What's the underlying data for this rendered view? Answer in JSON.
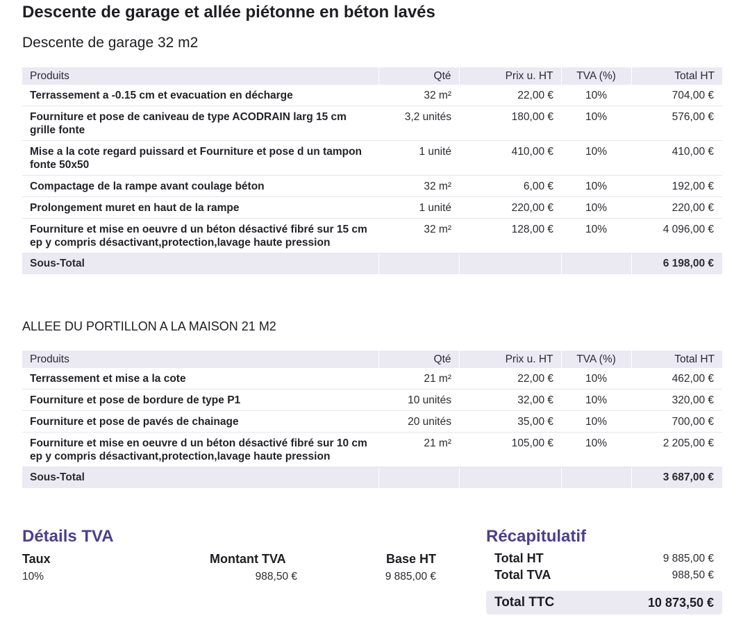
{
  "document": {
    "title": "Descente de garage et allée piétonne en béton lavés"
  },
  "table_headers": {
    "produits": "Produits",
    "qte": "Qté",
    "prix": "Prix u. HT",
    "tva": "TVA (%)",
    "total": "Total HT"
  },
  "sections": [
    {
      "title": "Descente de garage 32 m2",
      "rows": [
        {
          "desc": "Terrassement a -0.15 cm et evacuation en décharge",
          "qty": "32 m²",
          "price": "22,00 €",
          "tva": "10%",
          "total": "704,00 €"
        },
        {
          "desc": "Fourniture et pose de caniveau de type ACODRAIN larg 15 cm grille fonte",
          "qty": "3,2 unités",
          "price": "180,00 €",
          "tva": "10%",
          "total": "576,00 €"
        },
        {
          "desc": "Mise a la cote regard puissard et Fourniture et pose d un tampon fonte 50x50",
          "qty": "1 unité",
          "price": "410,00 €",
          "tva": "10%",
          "total": "410,00 €"
        },
        {
          "desc": "Compactage de la rampe avant coulage béton",
          "qty": "32 m²",
          "price": "6,00 €",
          "tva": "10%",
          "total": "192,00 €"
        },
        {
          "desc": "Prolongement muret en haut de la rampe",
          "qty": "1 unité",
          "price": "220,00 €",
          "tva": "10%",
          "total": "220,00 €"
        },
        {
          "desc": "Fourniture et mise en oeuvre d un béton désactivé fibré sur 15 cm ep y compris désactivant,protection,lavage haute pression",
          "qty": "32 m²",
          "price": "128,00 €",
          "tva": "10%",
          "total": "4 096,00 €"
        }
      ],
      "subtotal_label": "Sous-Total",
      "subtotal": "6 198,00 €"
    },
    {
      "title": "ALLEE DU PORTILLON A LA MAISON 21 M2",
      "rows": [
        {
          "desc": "Terrassement et mise a la cote",
          "qty": "21 m²",
          "price": "22,00 €",
          "tva": "10%",
          "total": "462,00 €"
        },
        {
          "desc": "Fourniture et pose de bordure de type P1",
          "qty": "10 unités",
          "price": "32,00 €",
          "tva": "10%",
          "total": "320,00 €"
        },
        {
          "desc": "Fourniture et pose de pavés de chainage",
          "qty": "20 unités",
          "price": "35,00 €",
          "tva": "10%",
          "total": "700,00 €"
        },
        {
          "desc": "Fourniture et mise en oeuvre d un béton désactivé fibré sur 10 cm ep y compris désactivant,protection,lavage haute pression",
          "qty": "21 m²",
          "price": "105,00 €",
          "tva": "10%",
          "total": "2 205,00 €"
        }
      ],
      "subtotal_label": "Sous-Total",
      "subtotal": "3 687,00 €"
    }
  ],
  "tva_details": {
    "title": "Détails TVA",
    "col_taux": "Taux",
    "col_montant": "Montant TVA",
    "col_base": "Base HT",
    "taux": "10%",
    "montant": "988,50 €",
    "base": "9 885,00 €"
  },
  "recap": {
    "title": "Récapitulatif",
    "total_ht_label": "Total HT",
    "total_ht": "9 885,00 €",
    "total_tva_label": "Total TVA",
    "total_tva": "988,50 €",
    "total_ttc_label": "Total TTC",
    "total_ttc": "10 873,50 €"
  },
  "colors": {
    "accent": "#4b3f8f",
    "header_bg": "#ebeaf3"
  }
}
